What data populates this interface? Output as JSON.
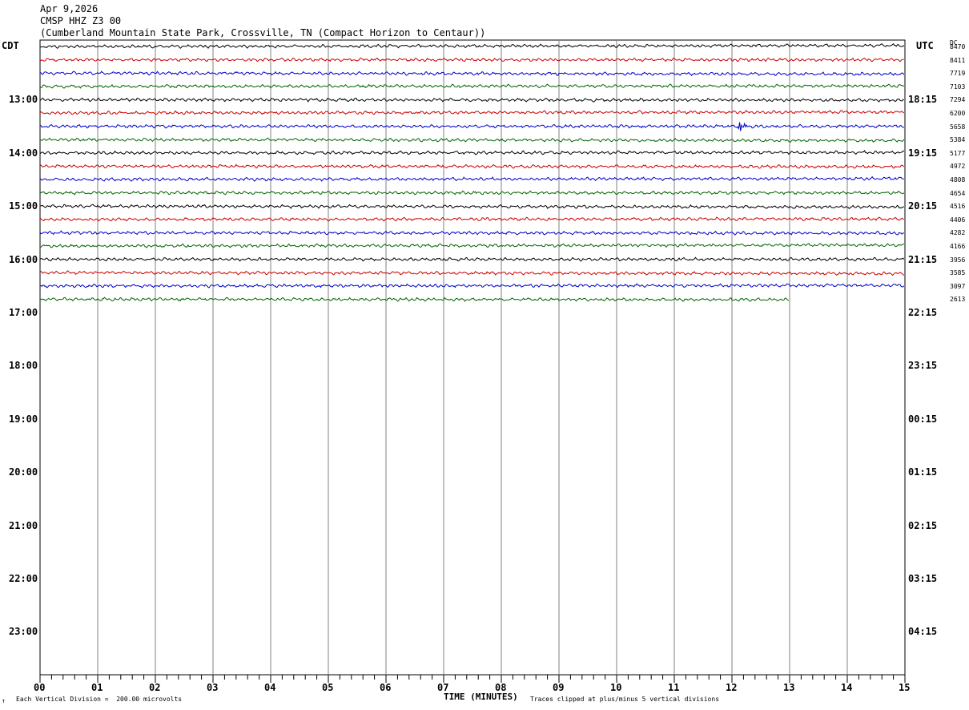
{
  "header": {
    "date": "Apr 9,2026",
    "station": "CMSP HHZ Z3 00",
    "location": "(Cumberland Mountain State Park, Crossville, TN (Compact Horizon to Centaur))"
  },
  "left_axis_label": "CDT",
  "right_axis_label": "UTC",
  "dc_label": "DC",
  "footer": {
    "scale_note": "Each Vertical Division =  200.00 microvolts",
    "x_axis_title": "TIME (MINUTES)",
    "clip_note": "Traces clipped at plus/minus 5 vertical divisions",
    "corner_mark": "↑"
  },
  "chart_data": {
    "type": "line",
    "title": "CMSP HHZ Z3 00",
    "xlabel": "TIME (MINUTES)",
    "xlim": [
      0,
      15
    ],
    "x_ticks": [
      "00",
      "01",
      "02",
      "03",
      "04",
      "05",
      "06",
      "07",
      "08",
      "09",
      "10",
      "11",
      "12",
      "13",
      "14",
      "15"
    ],
    "left_time_labels": [
      "13:00",
      "14:00",
      "15:00",
      "16:00",
      "17:00",
      "18:00",
      "19:00",
      "20:00",
      "21:00",
      "22:00",
      "23:00"
    ],
    "right_time_labels": [
      "18:15",
      "19:15",
      "20:15",
      "21:15",
      "22:15",
      "23:15",
      "00:15",
      "01:15",
      "02:15",
      "03:15",
      "04:15"
    ],
    "trace_colors": [
      "#000000",
      "#cc0000",
      "#0000cc",
      "#006600"
    ],
    "traces": [
      {
        "dc": "8470",
        "end_minute": 15
      },
      {
        "dc": "8411",
        "end_minute": 15
      },
      {
        "dc": "7719",
        "end_minute": 15
      },
      {
        "dc": "7103",
        "end_minute": 15
      },
      {
        "dc": "7294",
        "end_minute": 15
      },
      {
        "dc": "6200",
        "end_minute": 15
      },
      {
        "dc": "5658",
        "end_minute": 15,
        "event_minute": 12.1
      },
      {
        "dc": "5384",
        "end_minute": 15
      },
      {
        "dc": "5177",
        "end_minute": 15
      },
      {
        "dc": "4972",
        "end_minute": 15
      },
      {
        "dc": "4808",
        "end_minute": 15
      },
      {
        "dc": "4654",
        "end_minute": 15
      },
      {
        "dc": "4516",
        "end_minute": 15
      },
      {
        "dc": "4406",
        "end_minute": 15
      },
      {
        "dc": "4282",
        "end_minute": 15
      },
      {
        "dc": "4166",
        "end_minute": 15
      },
      {
        "dc": "3956",
        "end_minute": 15
      },
      {
        "dc": "3585",
        "end_minute": 15
      },
      {
        "dc": "3097",
        "end_minute": 15
      },
      {
        "dc": "2613",
        "end_minute": 13
      }
    ]
  }
}
